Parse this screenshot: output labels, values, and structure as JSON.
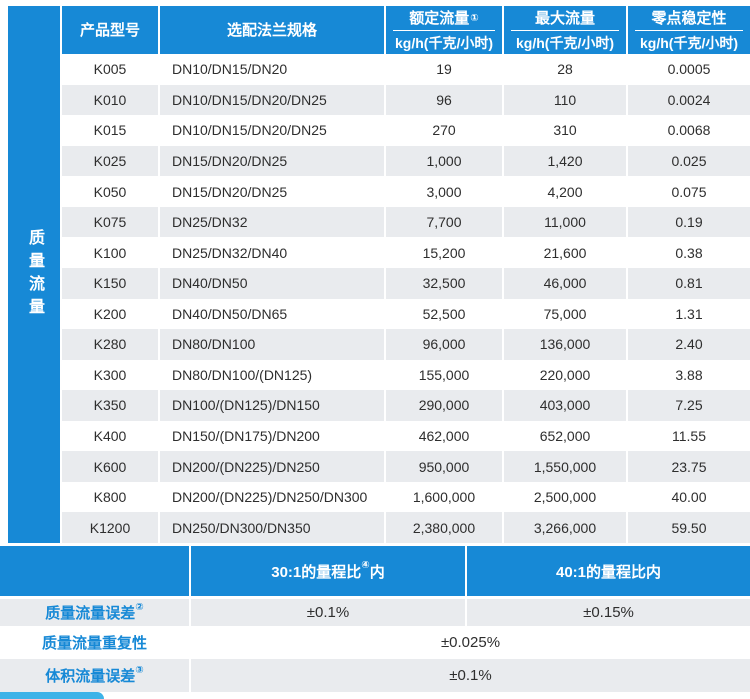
{
  "sidebar": {
    "label": "质量流量"
  },
  "table": {
    "columns": [
      {
        "title": "产品型号",
        "sup": "",
        "unit": ""
      },
      {
        "title": "选配法兰规格",
        "sup": "",
        "unit": ""
      },
      {
        "title": "额定流量",
        "sup": "①",
        "unit": "kg/h(千克/小时)"
      },
      {
        "title": "最大流量",
        "sup": "",
        "unit": "kg/h(千克/小时)"
      },
      {
        "title": "零点稳定性",
        "sup": "",
        "unit": "kg/h(千克/小时)"
      }
    ],
    "rows": [
      [
        "K005",
        "DN10/DN15/DN20",
        "19",
        "28",
        "0.0005"
      ],
      [
        "K010",
        "DN10/DN15/DN20/DN25",
        "96",
        "110",
        "0.0024"
      ],
      [
        "K015",
        "DN10/DN15/DN20/DN25",
        "270",
        "310",
        "0.0068"
      ],
      [
        "K025",
        "DN15/DN20/DN25",
        "1,000",
        "1,420",
        "0.025"
      ],
      [
        "K050",
        "DN15/DN20/DN25",
        "3,000",
        "4,200",
        "0.075"
      ],
      [
        "K075",
        "DN25/DN32",
        "7,700",
        "11,000",
        "0.19"
      ],
      [
        "K100",
        "DN25/DN32/DN40",
        "15,200",
        "21,600",
        "0.38"
      ],
      [
        "K150",
        "DN40/DN50",
        "32,500",
        "46,000",
        "0.81"
      ],
      [
        "K200",
        "DN40/DN50/DN65",
        "52,500",
        "75,000",
        "1.31"
      ],
      [
        "K280",
        "DN80/DN100",
        "96,000",
        "136,000",
        "2.40"
      ],
      [
        "K300",
        "DN80/DN100/(DN125)",
        "155,000",
        "220,000",
        "3.88"
      ],
      [
        "K350",
        "DN100/(DN125)/DN150",
        "290,000",
        "403,000",
        "7.25"
      ],
      [
        "K400",
        "DN150/(DN175)/DN200",
        "462,000",
        "652,000",
        "11.55"
      ],
      [
        "K600",
        "DN200/(DN225)/DN250",
        "950,000",
        "1,550,000",
        "23.75"
      ],
      [
        "K800",
        "DN200/(DN225)/DN250/DN300",
        "1,600,000",
        "2,500,000",
        "40.00"
      ],
      [
        "K1200",
        "DN250/DN300/DN350",
        "2,380,000",
        "3,266,000",
        "59.50"
      ]
    ]
  },
  "accuracy": {
    "band": [
      {
        "text": "",
        "sup": "",
        "suffix": ""
      },
      {
        "text": "30:1的量程比",
        "sup": "④",
        "suffix": "内"
      },
      {
        "text": "40:1的量程比内",
        "sup": "",
        "suffix": ""
      }
    ],
    "rows": [
      {
        "label": "质量流量误差",
        "sup": "②",
        "values": [
          "±0.1%",
          "±0.15%"
        ],
        "merged": "",
        "gray": true
      },
      {
        "label": "质量流量重复性",
        "sup": "",
        "values": [],
        "merged": "±0.025%",
        "gray": false
      },
      {
        "label": "体积流量误差",
        "sup": "③",
        "values": [],
        "merged": "±0.1%",
        "gray": true
      }
    ]
  },
  "colors": {
    "brand_blue": "#1789d6",
    "row_gray": "#e9ebee",
    "tab_blue": "#3db3e8",
    "text_dark": "#2e2e2e"
  }
}
